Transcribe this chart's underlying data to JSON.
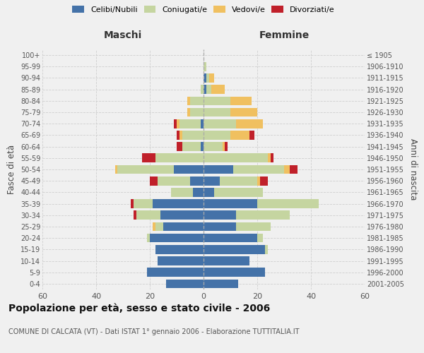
{
  "age_groups": [
    "0-4",
    "5-9",
    "10-14",
    "15-19",
    "20-24",
    "25-29",
    "30-34",
    "35-39",
    "40-44",
    "45-49",
    "50-54",
    "55-59",
    "60-64",
    "65-69",
    "70-74",
    "75-79",
    "80-84",
    "85-89",
    "90-94",
    "95-99",
    "100+"
  ],
  "birth_years": [
    "2001-2005",
    "1996-2000",
    "1991-1995",
    "1986-1990",
    "1981-1985",
    "1976-1980",
    "1971-1975",
    "1966-1970",
    "1961-1965",
    "1956-1960",
    "1951-1955",
    "1946-1950",
    "1941-1945",
    "1936-1940",
    "1931-1935",
    "1926-1930",
    "1921-1925",
    "1916-1920",
    "1911-1915",
    "1906-1910",
    "≤ 1905"
  ],
  "maschi_celibi": [
    14,
    21,
    17,
    18,
    20,
    15,
    16,
    19,
    4,
    5,
    11,
    0,
    1,
    0,
    1,
    0,
    0,
    0,
    0,
    0,
    0
  ],
  "maschi_coniugati": [
    0,
    0,
    0,
    0,
    1,
    3,
    9,
    7,
    8,
    12,
    21,
    18,
    7,
    8,
    8,
    5,
    5,
    1,
    0,
    0,
    0
  ],
  "maschi_vedovi": [
    0,
    0,
    0,
    0,
    0,
    1,
    0,
    0,
    0,
    0,
    1,
    0,
    0,
    1,
    1,
    1,
    1,
    0,
    0,
    0,
    0
  ],
  "maschi_divorziati": [
    0,
    0,
    0,
    0,
    0,
    0,
    1,
    1,
    0,
    3,
    0,
    5,
    2,
    1,
    1,
    0,
    0,
    0,
    0,
    0,
    0
  ],
  "femmine_celibi": [
    13,
    23,
    17,
    23,
    20,
    12,
    12,
    20,
    4,
    6,
    11,
    0,
    0,
    0,
    0,
    0,
    0,
    1,
    1,
    0,
    0
  ],
  "femmine_coniugati": [
    0,
    0,
    0,
    1,
    2,
    13,
    20,
    23,
    18,
    14,
    19,
    24,
    7,
    10,
    12,
    10,
    10,
    2,
    1,
    1,
    0
  ],
  "femmine_vedovi": [
    0,
    0,
    0,
    0,
    0,
    0,
    0,
    0,
    0,
    1,
    2,
    1,
    1,
    7,
    10,
    10,
    8,
    5,
    2,
    0,
    0
  ],
  "femmine_divorziati": [
    0,
    0,
    0,
    0,
    0,
    0,
    0,
    0,
    0,
    3,
    3,
    1,
    1,
    2,
    0,
    0,
    0,
    0,
    0,
    0,
    0
  ],
  "color_celibi": "#4472a8",
  "color_coniugati": "#c5d5a0",
  "color_vedovi": "#f0c060",
  "color_divorziati": "#c0202a",
  "title": "Popolazione per età, sesso e stato civile - 2006",
  "subtitle": "COMUNE DI CALCATA (VT) - Dati ISTAT 1° gennaio 2006 - Elaborazione TUTTITALIA.IT",
  "xlabel_left": "Maschi",
  "xlabel_right": "Femmine",
  "ylabel_left": "Fasce di età",
  "ylabel_right": "Anni di nascita",
  "xlim": 60,
  "bg_color": "#f0f0f0",
  "grid_color": "#cccccc"
}
